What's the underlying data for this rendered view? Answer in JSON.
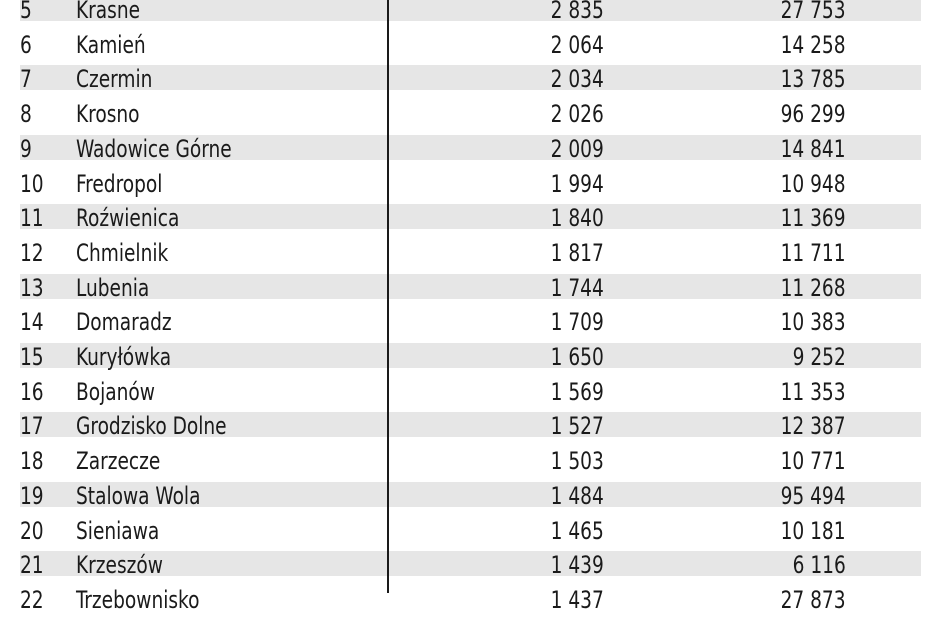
{
  "rows": [
    {
      "rank": "5",
      "name": "Krasne",
      "value1": "2 835",
      "value2": "27 753"
    },
    {
      "rank": "6",
      "name": "Kamień",
      "value1": "2 064",
      "value2": "14 258"
    },
    {
      "rank": "7",
      "name": "Czermin",
      "value1": "2 034",
      "value2": "13 785"
    },
    {
      "rank": "8",
      "name": "Krosno",
      "value1": "2 026",
      "value2": "96 299"
    },
    {
      "rank": "9",
      "name": "Wadowice Górne",
      "value1": "2 009",
      "value2": "14 841"
    },
    {
      "rank": "10",
      "name": "Fredropol",
      "value1": "1 994",
      "value2": "10 948"
    },
    {
      "rank": "11",
      "name": "Roźwienica",
      "value1": "1 840",
      "value2": "11 369"
    },
    {
      "rank": "12",
      "name": "Chmielnik",
      "value1": "1 817",
      "value2": "11 711"
    },
    {
      "rank": "13",
      "name": "Lubenia",
      "value1": "1 744",
      "value2": "11 268"
    },
    {
      "rank": "14",
      "name": "Domaradz",
      "value1": "1 709",
      "value2": "10 383"
    },
    {
      "rank": "15",
      "name": "Kuryłówka",
      "value1": "1 650",
      "value2": "9 252"
    },
    {
      "rank": "16",
      "name": "Bojanów",
      "value1": "1 569",
      "value2": "11 353"
    },
    {
      "rank": "17",
      "name": "Grodzisko Dolne",
      "value1": "1 527",
      "value2": "12 387"
    },
    {
      "rank": "18",
      "name": "Zarzecze",
      "value1": "1 503",
      "value2": "10 771"
    },
    {
      "rank": "19",
      "name": "Stalowa Wola",
      "value1": "1 484",
      "value2": "95 494"
    },
    {
      "rank": "20",
      "name": "Sieniawa",
      "value1": "1 465",
      "value2": "10 181"
    },
    {
      "rank": "21",
      "name": "Krzeszów",
      "value1": "1 439",
      "value2": "6 116"
    },
    {
      "rank": "22",
      "name": "Trzebownisko",
      "value1": "1 437",
      "value2": "27 873"
    }
  ],
  "colors": {
    "shade": "#e6e6e6",
    "text": "#1a1a1a",
    "divider": "#1a1a1a"
  }
}
